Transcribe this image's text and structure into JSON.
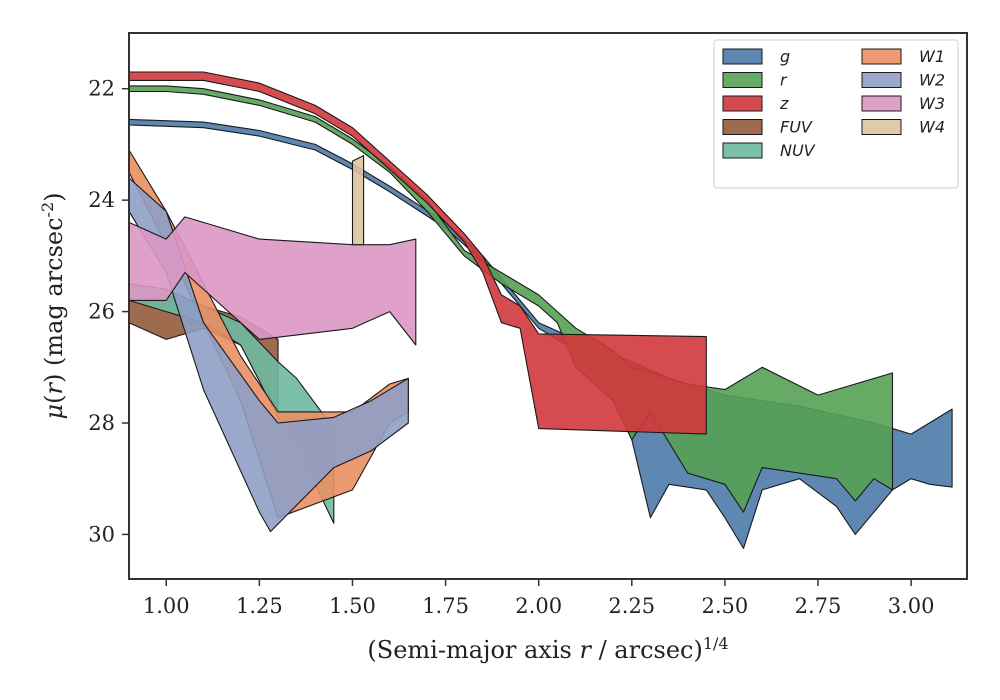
{
  "chart_data": {
    "type": "area",
    "title": "",
    "xlabel": "(Semi-major axis r / arcsec)^{1/4}",
    "ylabel": "μ(r) (mag arcsec^{-2})",
    "xlim": [
      0.9,
      3.15
    ],
    "ylim": [
      30.8,
      21.0
    ],
    "y_inverted": true,
    "grid": false,
    "legend_position": "top-right",
    "x_ticks": [
      "1.00",
      "1.25",
      "1.50",
      "1.75",
      "2.00",
      "2.25",
      "2.50",
      "2.75",
      "3.00"
    ],
    "y_ticks": [
      "22",
      "24",
      "26",
      "28",
      "30"
    ],
    "series": [
      {
        "name": "g",
        "color": "#4c7aa8",
        "upper": [
          [
            0.9,
            22.55
          ],
          [
            1.1,
            22.6
          ],
          [
            1.25,
            22.75
          ],
          [
            1.4,
            23.0
          ],
          [
            1.5,
            23.35
          ],
          [
            1.6,
            23.75
          ],
          [
            1.75,
            24.4
          ],
          [
            1.85,
            25.0
          ],
          [
            1.95,
            25.8
          ],
          [
            2.0,
            26.2
          ],
          [
            2.1,
            26.5
          ],
          [
            2.25,
            26.9
          ],
          [
            2.35,
            27.2
          ],
          [
            2.5,
            27.5
          ],
          [
            2.7,
            27.7
          ],
          [
            2.9,
            28.0
          ],
          [
            3.0,
            28.2
          ],
          [
            3.11,
            27.75
          ]
        ],
        "lower": [
          [
            0.9,
            22.65
          ],
          [
            1.1,
            22.7
          ],
          [
            1.25,
            22.85
          ],
          [
            1.4,
            23.1
          ],
          [
            1.5,
            23.45
          ],
          [
            1.6,
            23.85
          ],
          [
            1.75,
            24.5
          ],
          [
            1.85,
            25.1
          ],
          [
            1.95,
            25.9
          ],
          [
            2.0,
            26.3
          ],
          [
            2.1,
            26.7
          ],
          [
            2.2,
            27.6
          ],
          [
            2.25,
            28.3
          ],
          [
            2.3,
            29.7
          ],
          [
            2.35,
            29.1
          ],
          [
            2.45,
            29.2
          ],
          [
            2.5,
            29.7
          ],
          [
            2.55,
            30.25
          ],
          [
            2.6,
            29.2
          ],
          [
            2.7,
            29.0
          ],
          [
            2.8,
            29.5
          ],
          [
            2.85,
            30.0
          ],
          [
            2.95,
            29.2
          ],
          [
            3.0,
            29.0
          ],
          [
            3.05,
            29.1
          ],
          [
            3.11,
            29.15
          ]
        ]
      },
      {
        "name": "r",
        "color": "#55a155",
        "upper": [
          [
            0.9,
            21.95
          ],
          [
            1.0,
            21.95
          ],
          [
            1.1,
            22.0
          ],
          [
            1.25,
            22.2
          ],
          [
            1.4,
            22.5
          ],
          [
            1.5,
            22.9
          ],
          [
            1.6,
            23.4
          ],
          [
            1.7,
            24.0
          ],
          [
            1.8,
            24.9
          ],
          [
            1.9,
            25.3
          ],
          [
            2.0,
            25.7
          ],
          [
            2.05,
            26.0
          ],
          [
            2.1,
            26.3
          ],
          [
            2.2,
            26.7
          ],
          [
            2.25,
            27.0
          ],
          [
            2.4,
            27.3
          ],
          [
            2.5,
            27.4
          ],
          [
            2.6,
            27.0
          ],
          [
            2.75,
            27.5
          ],
          [
            2.85,
            27.3
          ],
          [
            2.95,
            27.1
          ]
        ],
        "lower": [
          [
            0.9,
            22.05
          ],
          [
            1.0,
            22.05
          ],
          [
            1.1,
            22.1
          ],
          [
            1.25,
            22.3
          ],
          [
            1.4,
            22.6
          ],
          [
            1.5,
            23.0
          ],
          [
            1.6,
            23.5
          ],
          [
            1.7,
            24.2
          ],
          [
            1.8,
            25.0
          ],
          [
            1.9,
            25.5
          ],
          [
            2.0,
            25.9
          ],
          [
            2.05,
            26.2
          ],
          [
            2.1,
            27.0
          ],
          [
            2.2,
            27.6
          ],
          [
            2.25,
            28.3
          ],
          [
            2.3,
            27.8
          ],
          [
            2.4,
            28.9
          ],
          [
            2.5,
            29.1
          ],
          [
            2.55,
            29.6
          ],
          [
            2.6,
            28.8
          ],
          [
            2.7,
            28.9
          ],
          [
            2.8,
            29.0
          ],
          [
            2.85,
            29.4
          ],
          [
            2.9,
            29.0
          ],
          [
            2.95,
            29.2
          ]
        ]
      },
      {
        "name": "z",
        "color": "#d1373c",
        "upper": [
          [
            0.9,
            21.7
          ],
          [
            1.0,
            21.7
          ],
          [
            1.1,
            21.7
          ],
          [
            1.25,
            21.9
          ],
          [
            1.4,
            22.3
          ],
          [
            1.5,
            22.7
          ],
          [
            1.6,
            23.3
          ],
          [
            1.7,
            23.9
          ],
          [
            1.8,
            24.6
          ],
          [
            1.85,
            25.0
          ],
          [
            1.9,
            25.7
          ],
          [
            1.95,
            25.9
          ],
          [
            2.0,
            26.4
          ],
          [
            2.45,
            26.45
          ]
        ],
        "lower": [
          [
            0.9,
            21.85
          ],
          [
            1.0,
            21.85
          ],
          [
            1.1,
            21.85
          ],
          [
            1.25,
            22.05
          ],
          [
            1.4,
            22.45
          ],
          [
            1.5,
            22.85
          ],
          [
            1.6,
            23.45
          ],
          [
            1.7,
            24.05
          ],
          [
            1.8,
            24.75
          ],
          [
            1.85,
            25.3
          ],
          [
            1.9,
            26.2
          ],
          [
            1.95,
            26.3
          ],
          [
            2.0,
            28.1
          ],
          [
            2.45,
            28.2
          ]
        ]
      },
      {
        "name": "FUV",
        "color": "#955b3c",
        "upper": [
          [
            0.9,
            25.8
          ],
          [
            1.0,
            25.7
          ],
          [
            1.1,
            25.9
          ],
          [
            1.2,
            26.1
          ],
          [
            1.3,
            26.5
          ]
        ],
        "lower": [
          [
            0.9,
            26.2
          ],
          [
            1.0,
            26.5
          ],
          [
            1.1,
            26.3
          ],
          [
            1.2,
            26.6
          ],
          [
            1.3,
            27.8
          ]
        ]
      },
      {
        "name": "NUV",
        "color": "#6fb9a1",
        "upper": [
          [
            0.9,
            25.5
          ],
          [
            1.0,
            25.6
          ],
          [
            1.1,
            25.9
          ],
          [
            1.2,
            26.2
          ],
          [
            1.3,
            26.9
          ],
          [
            1.35,
            27.2
          ],
          [
            1.45,
            28.1
          ]
        ],
        "lower": [
          [
            0.9,
            25.8
          ],
          [
            1.0,
            26.0
          ],
          [
            1.1,
            26.2
          ],
          [
            1.2,
            26.6
          ],
          [
            1.3,
            27.9
          ],
          [
            1.35,
            28.4
          ],
          [
            1.45,
            29.8
          ]
        ]
      },
      {
        "name": "W1",
        "color": "#ea8f63",
        "upper": [
          [
            0.9,
            23.1
          ],
          [
            1.0,
            24.2
          ],
          [
            1.1,
            25.5
          ],
          [
            1.2,
            26.8
          ],
          [
            1.3,
            27.8
          ],
          [
            1.5,
            27.8
          ],
          [
            1.6,
            27.3
          ],
          [
            1.65,
            27.2
          ]
        ],
        "lower": [
          [
            0.9,
            23.5
          ],
          [
            1.0,
            24.8
          ],
          [
            1.1,
            26.2
          ],
          [
            1.2,
            27.6
          ],
          [
            1.3,
            29.7
          ],
          [
            1.5,
            29.2
          ],
          [
            1.6,
            28.0
          ],
          [
            1.65,
            27.8
          ]
        ]
      },
      {
        "name": "W2",
        "color": "#8f9fc6",
        "upper": [
          [
            0.9,
            23.6
          ],
          [
            1.0,
            24.2
          ],
          [
            1.1,
            26.2
          ],
          [
            1.25,
            27.6
          ],
          [
            1.3,
            28.0
          ],
          [
            1.45,
            27.9
          ],
          [
            1.55,
            27.6
          ],
          [
            1.65,
            27.2
          ]
        ],
        "lower": [
          [
            0.9,
            24.2
          ],
          [
            1.0,
            25.3
          ],
          [
            1.1,
            27.4
          ],
          [
            1.25,
            29.6
          ],
          [
            1.28,
            29.95
          ],
          [
            1.45,
            28.8
          ],
          [
            1.55,
            28.5
          ],
          [
            1.65,
            28.0
          ]
        ]
      },
      {
        "name": "W3",
        "color": "#db97c4",
        "upper": [
          [
            0.9,
            24.4
          ],
          [
            1.0,
            24.7
          ],
          [
            1.05,
            24.3
          ],
          [
            1.25,
            24.7
          ],
          [
            1.5,
            24.8
          ],
          [
            1.6,
            24.8
          ],
          [
            1.67,
            24.7
          ]
        ],
        "lower": [
          [
            0.9,
            25.8
          ],
          [
            1.0,
            25.8
          ],
          [
            1.05,
            25.3
          ],
          [
            1.25,
            26.5
          ],
          [
            1.5,
            26.3
          ],
          [
            1.6,
            26.0
          ],
          [
            1.67,
            26.6
          ]
        ]
      },
      {
        "name": "W4",
        "color": "#dcc4a0",
        "upper": [
          [
            1.5,
            23.3
          ],
          [
            1.53,
            23.2
          ]
        ],
        "lower": [
          [
            1.5,
            24.8
          ],
          [
            1.53,
            24.8
          ]
        ]
      }
    ]
  }
}
